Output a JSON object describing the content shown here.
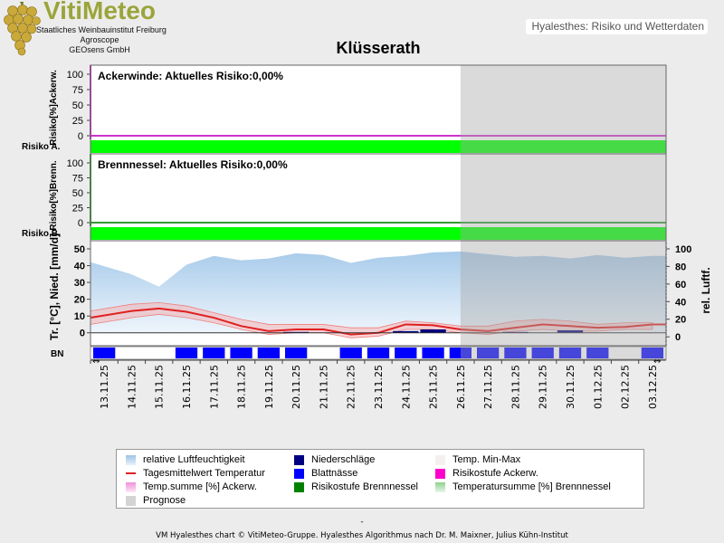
{
  "header": {
    "logo_text": "VitiMeteo",
    "logo_sub": [
      "Staatliches Weinbauinstitut Freiburg",
      "Agroscope",
      "GEOsens GmbH"
    ],
    "badge": "Hyalesthes: Risiko und Wetterdaten",
    "title": "Klüsserath"
  },
  "chart_data": {
    "type": "line",
    "x": [
      "13.11.25",
      "14.11.25",
      "15.11.25",
      "16.11.25",
      "17.11.25",
      "18.11.25",
      "19.11.25",
      "20.11.25",
      "21.11.25",
      "22.11.25",
      "23.11.25",
      "24.11.25",
      "25.11.25",
      "26.11.25",
      "27.11.25",
      "28.11.25",
      "29.11.25",
      "30.11.25",
      "01.12.25",
      "02.12.25",
      "03.12.25"
    ],
    "forecast_from": "26.11.25",
    "panels": [
      {
        "id": "ackerwinde",
        "annotation": "Ackerwinde: Aktuelles Risiko:0,00%",
        "ylabel": "Risiko[%]Ackerw.",
        "ylim": [
          0,
          100
        ],
        "yticks": [
          0,
          25,
          50,
          75,
          100
        ],
        "band_label": "Risiko A.",
        "risk_values": [
          0,
          0,
          0,
          0,
          0,
          0,
          0,
          0,
          0,
          0,
          0,
          0,
          0,
          0,
          0,
          0,
          0,
          0,
          0,
          0,
          0
        ],
        "band_color": "#00ff00",
        "axis_color": "#cc33cc"
      },
      {
        "id": "brennnessel",
        "annotation": "Brennnessel: Aktuelles Risiko:0,00%",
        "ylabel": "Risiko[%]Brenn.",
        "ylim": [
          0,
          100
        ],
        "yticks": [
          0,
          25,
          50,
          75,
          100
        ],
        "band_label": "Risiko B.",
        "risk_values": [
          0,
          0,
          0,
          0,
          0,
          0,
          0,
          0,
          0,
          0,
          0,
          0,
          0,
          0,
          0,
          0,
          0,
          0,
          0,
          0,
          0
        ],
        "band_color": "#00ff00",
        "axis_color": "#339933"
      },
      {
        "id": "weather",
        "ylabel": "Tr. [°C], Nied. [mm/d]",
        "ylim": [
          -5,
          50
        ],
        "yticks": [
          0,
          10,
          20,
          30,
          40,
          50
        ],
        "ylabel_right": "rel. Luftf.",
        "ylim_right": [
          -5,
          100
        ],
        "yticks_right": [
          0,
          20,
          40,
          60,
          80,
          100
        ],
        "band_label": "BN",
        "series": [
          {
            "name": "relative Luftfeuchtigkeit",
            "type": "area",
            "axis": "right",
            "color": "#bcd8f0",
            "values": [
              85,
              71,
              57,
              82,
              92,
              87,
              89,
              95,
              93,
              84,
              90,
              92,
              96,
              97,
              94,
              91,
              92,
              89,
              93,
              90,
              92
            ]
          },
          {
            "name": "Temp. Min-Max",
            "type": "band",
            "min": [
              5,
              9,
              11,
              9,
              6,
              2,
              -1,
              0,
              0,
              -3,
              -2,
              2,
              2,
              0,
              -1,
              1,
              2,
              1,
              1,
              2,
              2
            ],
            "max": [
              13,
              17,
              18,
              16,
              12,
              8,
              5,
              5,
              5,
              3,
              3,
              7,
              6,
              4,
              4,
              7,
              8,
              7,
              5,
              6,
              6
            ],
            "color": "#f5b3b3"
          },
          {
            "name": "Tagesmittelwert Temperatur",
            "type": "line",
            "color": "#e02020",
            "values": [
              9,
              13,
              14.5,
              12.5,
              9,
              4,
              1,
              2,
              2,
              -1,
              0,
              5,
              4.5,
              2,
              1,
              3,
              5,
              4,
              3,
              3.5,
              5
            ]
          },
          {
            "name": "Niederschläge",
            "type": "bar",
            "color": "#000080",
            "values": [
              0,
              0,
              0,
              0,
              0,
              0,
              0,
              0.5,
              0,
              0,
              0,
              1,
              2,
              0,
              0,
              0.5,
              0,
              1.5,
              0,
              0,
              0
            ]
          }
        ],
        "blattnaesse": [
          1,
          0,
          0,
          1,
          1,
          1,
          1,
          1,
          0,
          1,
          1,
          1,
          1,
          1,
          1,
          1,
          1,
          1,
          1,
          0,
          1
        ]
      }
    ],
    "legend": [
      {
        "name": "relative Luftfeuchtigkeit",
        "color": "#bcd8f0"
      },
      {
        "name": "Niederschläge",
        "color": "#000080"
      },
      {
        "name": "Temp. Min-Max",
        "color": "#f5f0f0"
      },
      {
        "name": "Tagesmittelwert Temperatur",
        "color": "#e02020"
      },
      {
        "name": "Blattnässe",
        "color": "#0000ff"
      },
      {
        "name": "Risikostufe Ackerw.",
        "color": "#ff00cc"
      },
      {
        "name": "Temp.summe [%] Ackerw.",
        "color": "#f5a8e0"
      },
      {
        "name": "Risikostufe Brennnessel",
        "color": "#008000"
      },
      {
        "name": "Temperatursumme [%] Brennnessel",
        "color": "#a8e0a8"
      },
      {
        "name": "Prognose",
        "color": "#d4d4d4"
      }
    ]
  },
  "footer": {
    "dash": "-",
    "text": "VM Hyalesthes chart © VitiMeteo-Gruppe. Hyalesthes Algorithmus nach Dr. M. Maixner, Julius Kühn-Institut"
  }
}
